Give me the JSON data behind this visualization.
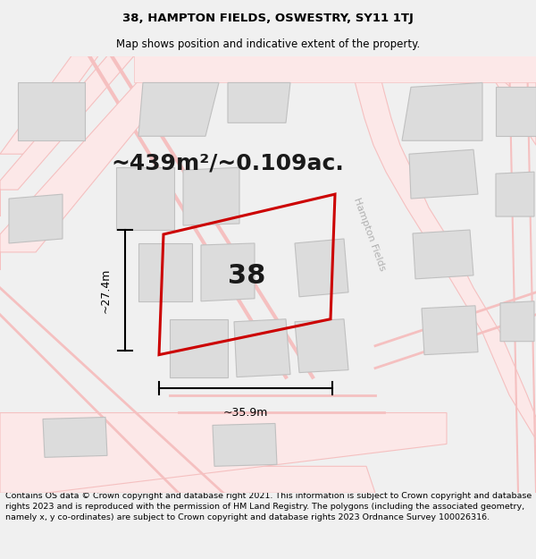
{
  "title": "38, HAMPTON FIELDS, OSWESTRY, SY11 1TJ",
  "subtitle": "Map shows position and indicative extent of the property.",
  "area_label": "~439m²/~0.109ac.",
  "number_label": "38",
  "width_label": "~35.9m",
  "height_label": "~27.4m",
  "road_label": "Hampton Fields",
  "footer": "Contains OS data © Crown copyright and database right 2021. This information is subject to Crown copyright and database rights 2023 and is reproduced with the permission of HM Land Registry. The polygons (including the associated geometry, namely x, y co-ordinates) are subject to Crown copyright and database rights 2023 Ordnance Survey 100026316.",
  "bg_color": "#f0f0f0",
  "map_bg": "#ffffff",
  "road_color": "#f5c0c0",
  "road_fill": "#fce8e8",
  "building_color": "#dcdcdc",
  "building_edge": "#c0c0c0",
  "highlight_color": "#cc0000",
  "road_label_color": "#b0b0b0",
  "title_fontsize": 9.5,
  "subtitle_fontsize": 8.5,
  "area_fontsize": 18,
  "number_fontsize": 22,
  "dim_fontsize": 9,
  "road_label_fontsize": 8,
  "footer_fontsize": 6.8
}
